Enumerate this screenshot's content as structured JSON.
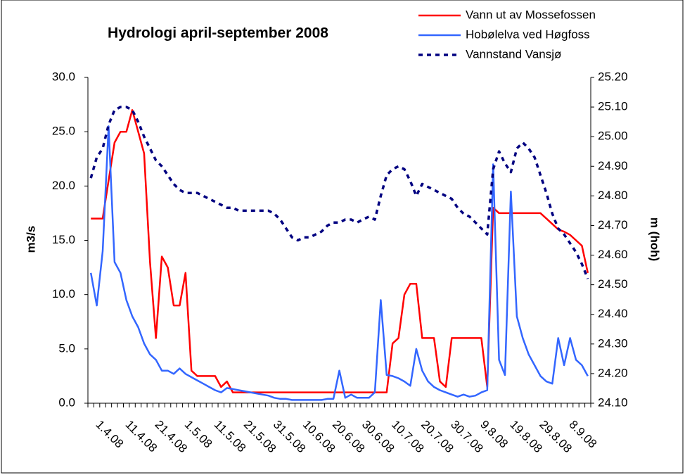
{
  "chart_data": {
    "type": "line",
    "title": "Hydrologi april-september 2008",
    "ylabel": "m3/s",
    "y2label": "m (hoh)",
    "categories": [
      null,
      null,
      null,
      "1.4.08",
      null,
      null,
      null,
      null,
      "11.4.08",
      null,
      null,
      null,
      null,
      "21.4.08",
      null,
      null,
      null,
      null,
      "1.5.08",
      null,
      null,
      null,
      null,
      "11.5.08",
      null,
      null,
      null,
      null,
      "21.5.08",
      null,
      null,
      null,
      null,
      "31.5.08",
      null,
      null,
      null,
      null,
      "10.6.08",
      null,
      null,
      null,
      null,
      "20.6.08",
      null,
      null,
      null,
      null,
      "30.6.08",
      null,
      null,
      null,
      null,
      "10.7.08",
      null,
      null,
      null,
      null,
      "20.7.08",
      null,
      null,
      null,
      null,
      "30.7.08",
      null,
      null,
      null,
      null,
      "9.8.08",
      null,
      null,
      null,
      null,
      "19.8.08",
      null,
      null,
      null,
      null,
      "29.8.08",
      null,
      null,
      null,
      null,
      "8.9.08",
      null
    ],
    "series": [
      {
        "name": "Vann ut av Mossefossen",
        "color": "#ff0000",
        "style": "solid",
        "values": [
          17,
          17,
          17,
          20.5,
          24,
          25,
          25,
          27,
          25,
          23,
          13,
          6,
          13.5,
          12.5,
          9,
          9,
          12,
          3,
          2.5,
          2.5,
          2.5,
          2.5,
          1.5,
          2,
          1,
          1,
          1,
          1,
          1,
          1,
          1,
          1,
          1,
          1,
          1,
          1,
          1,
          1,
          1,
          1,
          1,
          1,
          1,
          1,
          1,
          1,
          1,
          1,
          1,
          1,
          1,
          5.5,
          6,
          10,
          11,
          11,
          6,
          6,
          6,
          2,
          1.5,
          6,
          6,
          6,
          6,
          6,
          6,
          1.5,
          18,
          17.5,
          17.5,
          17.5,
          17.5,
          17.5,
          17.5,
          17.5,
          17.5,
          17,
          16.5,
          16,
          15.8,
          15.5,
          15,
          14.5,
          12
        ]
      },
      {
        "name": "Hobølelva ved Høgfoss",
        "color": "#3366ff",
        "style": "solid",
        "values": [
          12,
          9,
          14,
          25.5,
          13,
          12,
          9.5,
          8,
          7,
          5.5,
          4.5,
          4,
          3,
          3,
          2.7,
          3.2,
          2.7,
          2.4,
          2.1,
          1.8,
          1.5,
          1.2,
          1,
          1.4,
          1.3,
          1.2,
          1.1,
          1,
          0.9,
          0.8,
          0.7,
          0.5,
          0.4,
          0.4,
          0.3,
          0.3,
          0.3,
          0.3,
          0.3,
          0.3,
          0.4,
          0.4,
          3,
          0.5,
          0.8,
          0.5,
          0.5,
          0.5,
          1,
          9.5,
          2.6,
          2.5,
          2.3,
          2,
          1.6,
          5,
          3,
          2,
          1.5,
          1.2,
          1,
          0.8,
          0.6,
          0.8,
          0.6,
          0.7,
          1,
          1.2,
          22,
          4,
          2.6,
          19.5,
          8,
          6,
          4.5,
          3.5,
          2.5,
          2,
          1.8,
          6,
          3.5,
          6,
          4,
          3.5,
          2.5
        ]
      },
      {
        "name": "Vannstand Vansjø",
        "color": "#000080",
        "style": "dotted",
        "axis": "y2",
        "values": [
          24.86,
          24.93,
          24.96,
          25.04,
          25.09,
          25.1,
          25.1,
          25.09,
          25.05,
          25.0,
          24.96,
          24.92,
          24.9,
          24.87,
          24.84,
          24.82,
          24.81,
          24.81,
          24.81,
          24.8,
          24.79,
          24.78,
          24.77,
          24.76,
          24.76,
          24.75,
          24.75,
          24.75,
          24.75,
          24.75,
          24.75,
          24.74,
          24.72,
          24.69,
          24.66,
          24.65,
          24.66,
          24.66,
          24.67,
          24.68,
          24.7,
          24.71,
          24.71,
          24.72,
          24.72,
          24.71,
          24.72,
          24.73,
          24.72,
          24.8,
          24.87,
          24.89,
          24.9,
          24.89,
          24.85,
          24.8,
          24.84,
          24.83,
          24.82,
          24.81,
          24.8,
          24.79,
          24.76,
          24.74,
          24.73,
          24.71,
          24.69,
          24.67,
          24.89,
          24.95,
          24.91,
          24.88,
          24.96,
          24.98,
          24.96,
          24.93,
          24.87,
          24.81,
          24.74,
          24.69,
          24.67,
          24.64,
          24.61,
          24.57,
          24.52
        ]
      }
    ],
    "ylim": [
      0,
      30
    ],
    "yticks": [
      {
        "value": 0,
        "label": "0.0"
      },
      {
        "value": 5,
        "label": "5.0"
      },
      {
        "value": 10,
        "label": "10.0"
      },
      {
        "value": 15,
        "label": "15.0"
      },
      {
        "value": 20,
        "label": "20.0"
      },
      {
        "value": 25,
        "label": "25.0"
      },
      {
        "value": 30,
        "label": "30.0"
      }
    ],
    "y2lim": [
      24.1,
      25.2
    ],
    "y2ticks": [
      {
        "value": 24.1,
        "label": "24.10"
      },
      {
        "value": 24.2,
        "label": "24.20"
      },
      {
        "value": 24.3,
        "label": "24.30"
      },
      {
        "value": 24.4,
        "label": "24.40"
      },
      {
        "value": 24.5,
        "label": "24.50"
      },
      {
        "value": 24.6,
        "label": "24.60"
      },
      {
        "value": 24.7,
        "label": "24.70"
      },
      {
        "value": 24.8,
        "label": "24.80"
      },
      {
        "value": 24.9,
        "label": "24.90"
      },
      {
        "value": 25.0,
        "label": "25.00"
      },
      {
        "value": 25.1,
        "label": "25.10"
      },
      {
        "value": 25.2,
        "label": "25.20"
      }
    ],
    "grid": false,
    "legend": "top-right"
  }
}
